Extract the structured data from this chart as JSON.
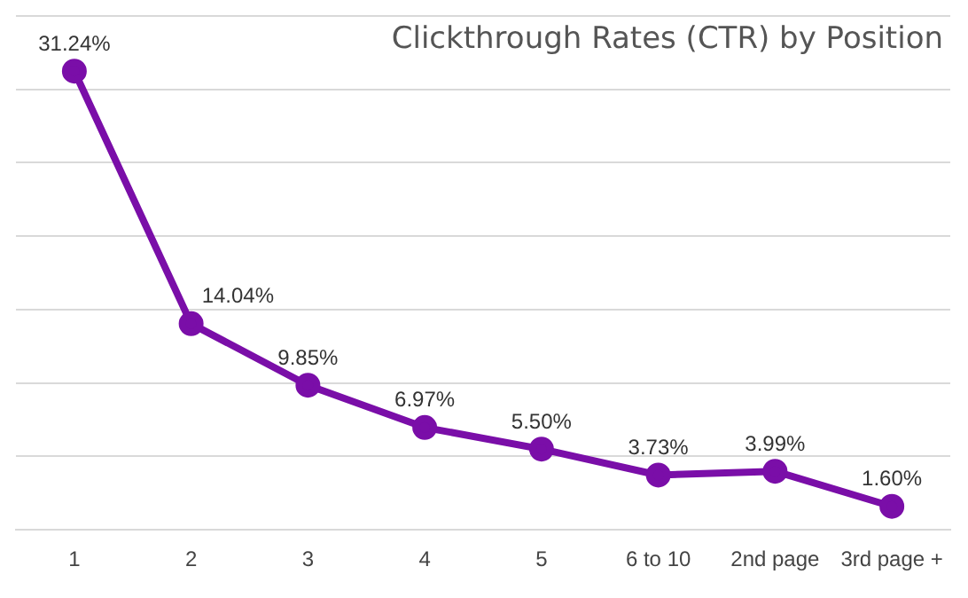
{
  "chart_data": {
    "type": "line",
    "title": "Clickthrough Rates (CTR) by Position",
    "categories": [
      "1",
      "2",
      "3",
      "4",
      "5",
      "6 to 10",
      "2nd page",
      "3rd page +"
    ],
    "series": [
      {
        "color": "#7a0ea8",
        "values": [
          31.24,
          14.04,
          9.85,
          6.97,
          5.5,
          3.73,
          3.99,
          1.6
        ],
        "value_labels": [
          "31.24%",
          "14.04%",
          "9.85%",
          "6.97%",
          "5.50%",
          "3.73%",
          "3.99%",
          "1.60%"
        ]
      }
    ],
    "ylim": [
      0,
      35
    ],
    "yticks": [
      0,
      5,
      10,
      15,
      20,
      25,
      30,
      35
    ],
    "grid": "y",
    "tick_labels": "x",
    "legend": false,
    "marker": "circle",
    "line_style": "solid"
  }
}
